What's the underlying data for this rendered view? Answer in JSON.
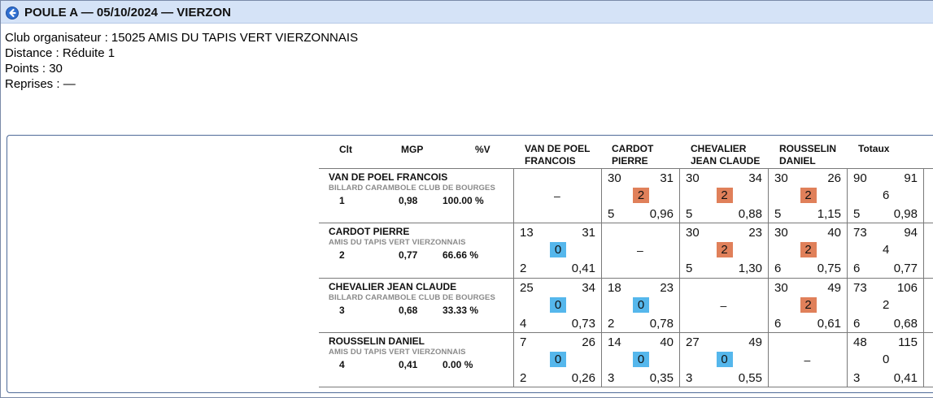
{
  "header": {
    "title": "POULE A — 05/10/2024 — VIERZON"
  },
  "info": {
    "club": "Club organisateur : 15025 AMIS DU TAPIS VERT VIERZONNAIS",
    "distance": "Distance : Réduite 1",
    "points": "Points : 30",
    "reprises": "Reprises : —"
  },
  "columns": {
    "clt": "Clt",
    "mgp": "MGP",
    "pv": "%V",
    "opponents": [
      [
        "VAN DE POEL",
        "FRANCOIS"
      ],
      [
        "CARDOT",
        "PIERRE"
      ],
      [
        "CHEVALIER",
        "JEAN CLAUDE"
      ],
      [
        "ROUSSELIN",
        "DANIEL"
      ]
    ],
    "totals": "Totaux"
  },
  "dash": "–",
  "colors": {
    "win": "#e0805a",
    "loss": "#55b7ec",
    "titlebar": "#d5e3f7"
  },
  "players": [
    {
      "name": "VAN DE POEL FRANCOIS",
      "club": "BILLARD CARAMBOLE CLUB DE BOURGES",
      "rank": "1",
      "mgp": "0,98",
      "pv": "100.00 %",
      "matches": [
        null,
        {
          "pts": "30",
          "opp": "31",
          "res": "2",
          "rep": "5",
          "moy": "0,96"
        },
        {
          "pts": "30",
          "opp": "34",
          "res": "2",
          "rep": "5",
          "moy": "0,88"
        },
        {
          "pts": "30",
          "opp": "26",
          "res": "2",
          "rep": "5",
          "moy": "1,15"
        }
      ],
      "totals": {
        "pts": "90",
        "opp": "91",
        "res": "6",
        "rep": "5",
        "moy": "0,98"
      }
    },
    {
      "name": "CARDOT PIERRE",
      "club": "AMIS DU TAPIS VERT VIERZONNAIS",
      "rank": "2",
      "mgp": "0,77",
      "pv": "66.66 %",
      "matches": [
        {
          "pts": "13",
          "opp": "31",
          "res": "0",
          "rep": "2",
          "moy": "0,41"
        },
        null,
        {
          "pts": "30",
          "opp": "23",
          "res": "2",
          "rep": "5",
          "moy": "1,30"
        },
        {
          "pts": "30",
          "opp": "40",
          "res": "2",
          "rep": "6",
          "moy": "0,75"
        }
      ],
      "totals": {
        "pts": "73",
        "opp": "94",
        "res": "4",
        "rep": "6",
        "moy": "0,77"
      }
    },
    {
      "name": "CHEVALIER JEAN CLAUDE",
      "club": "BILLARD CARAMBOLE CLUB DE BOURGES",
      "rank": "3",
      "mgp": "0,68",
      "pv": "33.33 %",
      "matches": [
        {
          "pts": "25",
          "opp": "34",
          "res": "0",
          "rep": "4",
          "moy": "0,73"
        },
        {
          "pts": "18",
          "opp": "23",
          "res": "0",
          "rep": "2",
          "moy": "0,78"
        },
        null,
        {
          "pts": "30",
          "opp": "49",
          "res": "2",
          "rep": "6",
          "moy": "0,61"
        }
      ],
      "totals": {
        "pts": "73",
        "opp": "106",
        "res": "2",
        "rep": "6",
        "moy": "0,68"
      }
    },
    {
      "name": "ROUSSELIN DANIEL",
      "club": "AMIS DU TAPIS VERT VIERZONNAIS",
      "rank": "4",
      "mgp": "0,41",
      "pv": "0.00 %",
      "matches": [
        {
          "pts": "7",
          "opp": "26",
          "res": "0",
          "rep": "2",
          "moy": "0,26"
        },
        {
          "pts": "14",
          "opp": "40",
          "res": "0",
          "rep": "3",
          "moy": "0,35"
        },
        {
          "pts": "27",
          "opp": "49",
          "res": "0",
          "rep": "3",
          "moy": "0,55"
        },
        null
      ],
      "totals": {
        "pts": "48",
        "opp": "115",
        "res": "0",
        "rep": "3",
        "moy": "0,41"
      }
    }
  ]
}
